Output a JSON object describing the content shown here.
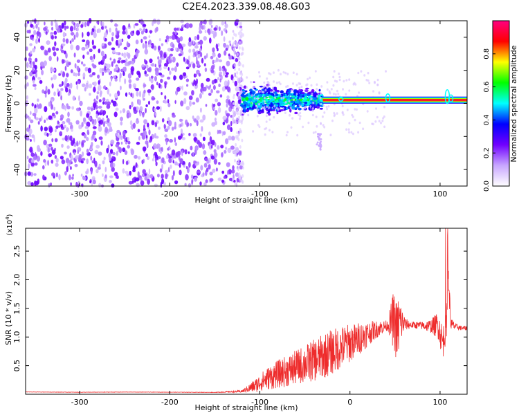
{
  "figure_title": "C2E4.2023.339.08.48.G03",
  "chart_data": [
    {
      "type": "heatmap",
      "title": "",
      "xlabel": "Height of straight line (km)",
      "ylabel": "Frequency (Hz)",
      "xlim": [
        -360,
        130
      ],
      "ylim": [
        -50,
        50
      ],
      "xticks": [
        -300,
        -200,
        -100,
        0,
        100
      ],
      "yticks": [
        -40,
        -20,
        0,
        20,
        40
      ],
      "xtick_labels": [
        "-300",
        "-200",
        "-100",
        "0",
        "100"
      ],
      "ytick_labels": [
        "-40",
        "-20",
        "0",
        "20",
        "40"
      ],
      "colorbar": {
        "label": "Normalized spectral amplitude",
        "range": [
          0,
          1
        ],
        "ticks": [
          "0.0",
          "0.2",
          "0.4",
          "0.6",
          "0.8"
        ],
        "colormap": "rainbow",
        "colors": [
          "#ffffff",
          "#c8a6ff",
          "#7000ff",
          "#0000ff",
          "#00ffff",
          "#00ff00",
          "#ffff00",
          "#ff0000",
          "#ff0080"
        ]
      },
      "features": [
        {
          "x_range": [
            -360,
            -120
          ],
          "y_range": [
            -50,
            50
          ],
          "level": 0.2
        },
        {
          "x_range": [
            -120,
            -30
          ],
          "y_range": [
            -12,
            12
          ],
          "level": 0.45
        },
        {
          "x_range": [
            -30,
            130
          ],
          "y_center": 2,
          "y_halfwidth": 1.5,
          "level": 0.9
        }
      ]
    },
    {
      "type": "line",
      "title": "",
      "xlabel": "Height of straight line (km)",
      "ylabel": "SNR (10 * v/v)",
      "y_multiplier": "(x10",
      "y_multiplier_exp": "4",
      "y_multiplier_close": ")",
      "xlim": [
        -360,
        130
      ],
      "ylim": [
        0,
        29000
      ],
      "xticks": [
        -300,
        -200,
        -100,
        0,
        100
      ],
      "yticks": [
        5000,
        10000,
        15000,
        20000,
        25000
      ],
      "xtick_labels": [
        "-300",
        "-200",
        "-100",
        "0",
        "100"
      ],
      "ytick_labels": [
        "0.5",
        "1.0",
        "1.5",
        "2.0",
        "2.5"
      ],
      "color": "#ee2c2c",
      "series": [
        {
          "x": [
            -360,
            -300,
            -250,
            -200,
            -150,
            -120,
            -105,
            -95,
            -85,
            -75,
            -65,
            -55,
            -45,
            -35,
            -25,
            -15,
            -5,
            5,
            15,
            25,
            35,
            42,
            48,
            52,
            55,
            58,
            62,
            70,
            80,
            90,
            98,
            103,
            107,
            109,
            112,
            118,
            125,
            130
          ],
          "y": [
            400,
            350,
            380,
            360,
            330,
            500,
            1500,
            2500,
            3200,
            3800,
            4300,
            5000,
            5600,
            6200,
            7000,
            7800,
            8600,
            9300,
            10200,
            11000,
            11700,
            12000,
            13000,
            11000,
            12300,
            12500,
            12200,
            12100,
            12000,
            11900,
            12100,
            9000,
            12000,
            21000,
            12200,
            11800,
            11500,
            11600
          ],
          "noise": [
            30,
            30,
            30,
            30,
            30,
            200,
            1200,
            1800,
            2300,
            2600,
            2900,
            3200,
            3500,
            3800,
            4000,
            3900,
            3600,
            3100,
            2600,
            1800,
            1200,
            900,
            5000,
            5500,
            5500,
            2500,
            1000,
            600,
            700,
            1200,
            2500,
            3000,
            2500,
            3000,
            1200,
            500,
            400,
            400
          ]
        }
      ]
    }
  ]
}
